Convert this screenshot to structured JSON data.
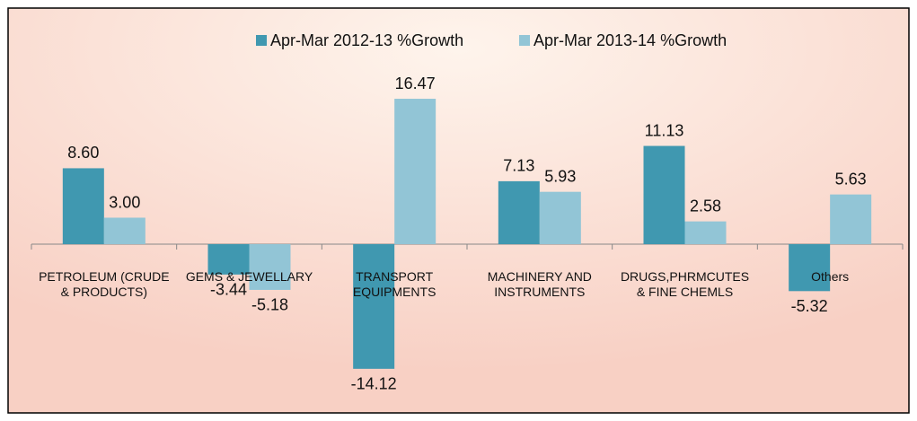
{
  "chart_data": {
    "type": "bar",
    "categories": [
      "PETROLEUM (CRUDE\n& PRODUCTS)",
      "GEMS & JEWELLARY",
      "TRANSPORT\nEQUIPMENTS",
      "MACHINERY AND\nINSTRUMENTS",
      "DRUGS,PHRMCUTES\n& FINE CHEMLS",
      "Others"
    ],
    "series": [
      {
        "name": "Apr-Mar 2012-13 %Growth",
        "color": "#4098b0",
        "values": [
          8.6,
          -3.44,
          -14.12,
          7.13,
          11.13,
          -5.32
        ],
        "value_labels": [
          "8.60",
          "-3.44",
          "-14.12",
          "7.13",
          "11.13",
          "-5.32"
        ]
      },
      {
        "name": "Apr-Mar 2013-14 %Growth",
        "color": "#92c5d6",
        "values": [
          3.0,
          -5.18,
          16.47,
          5.93,
          2.58,
          5.63
        ],
        "value_labels": [
          "3.00",
          "-5.18",
          "16.47",
          "5.93",
          "2.58",
          "5.63"
        ]
      }
    ],
    "ylim": [
      -18,
      18
    ],
    "legend": "top"
  }
}
